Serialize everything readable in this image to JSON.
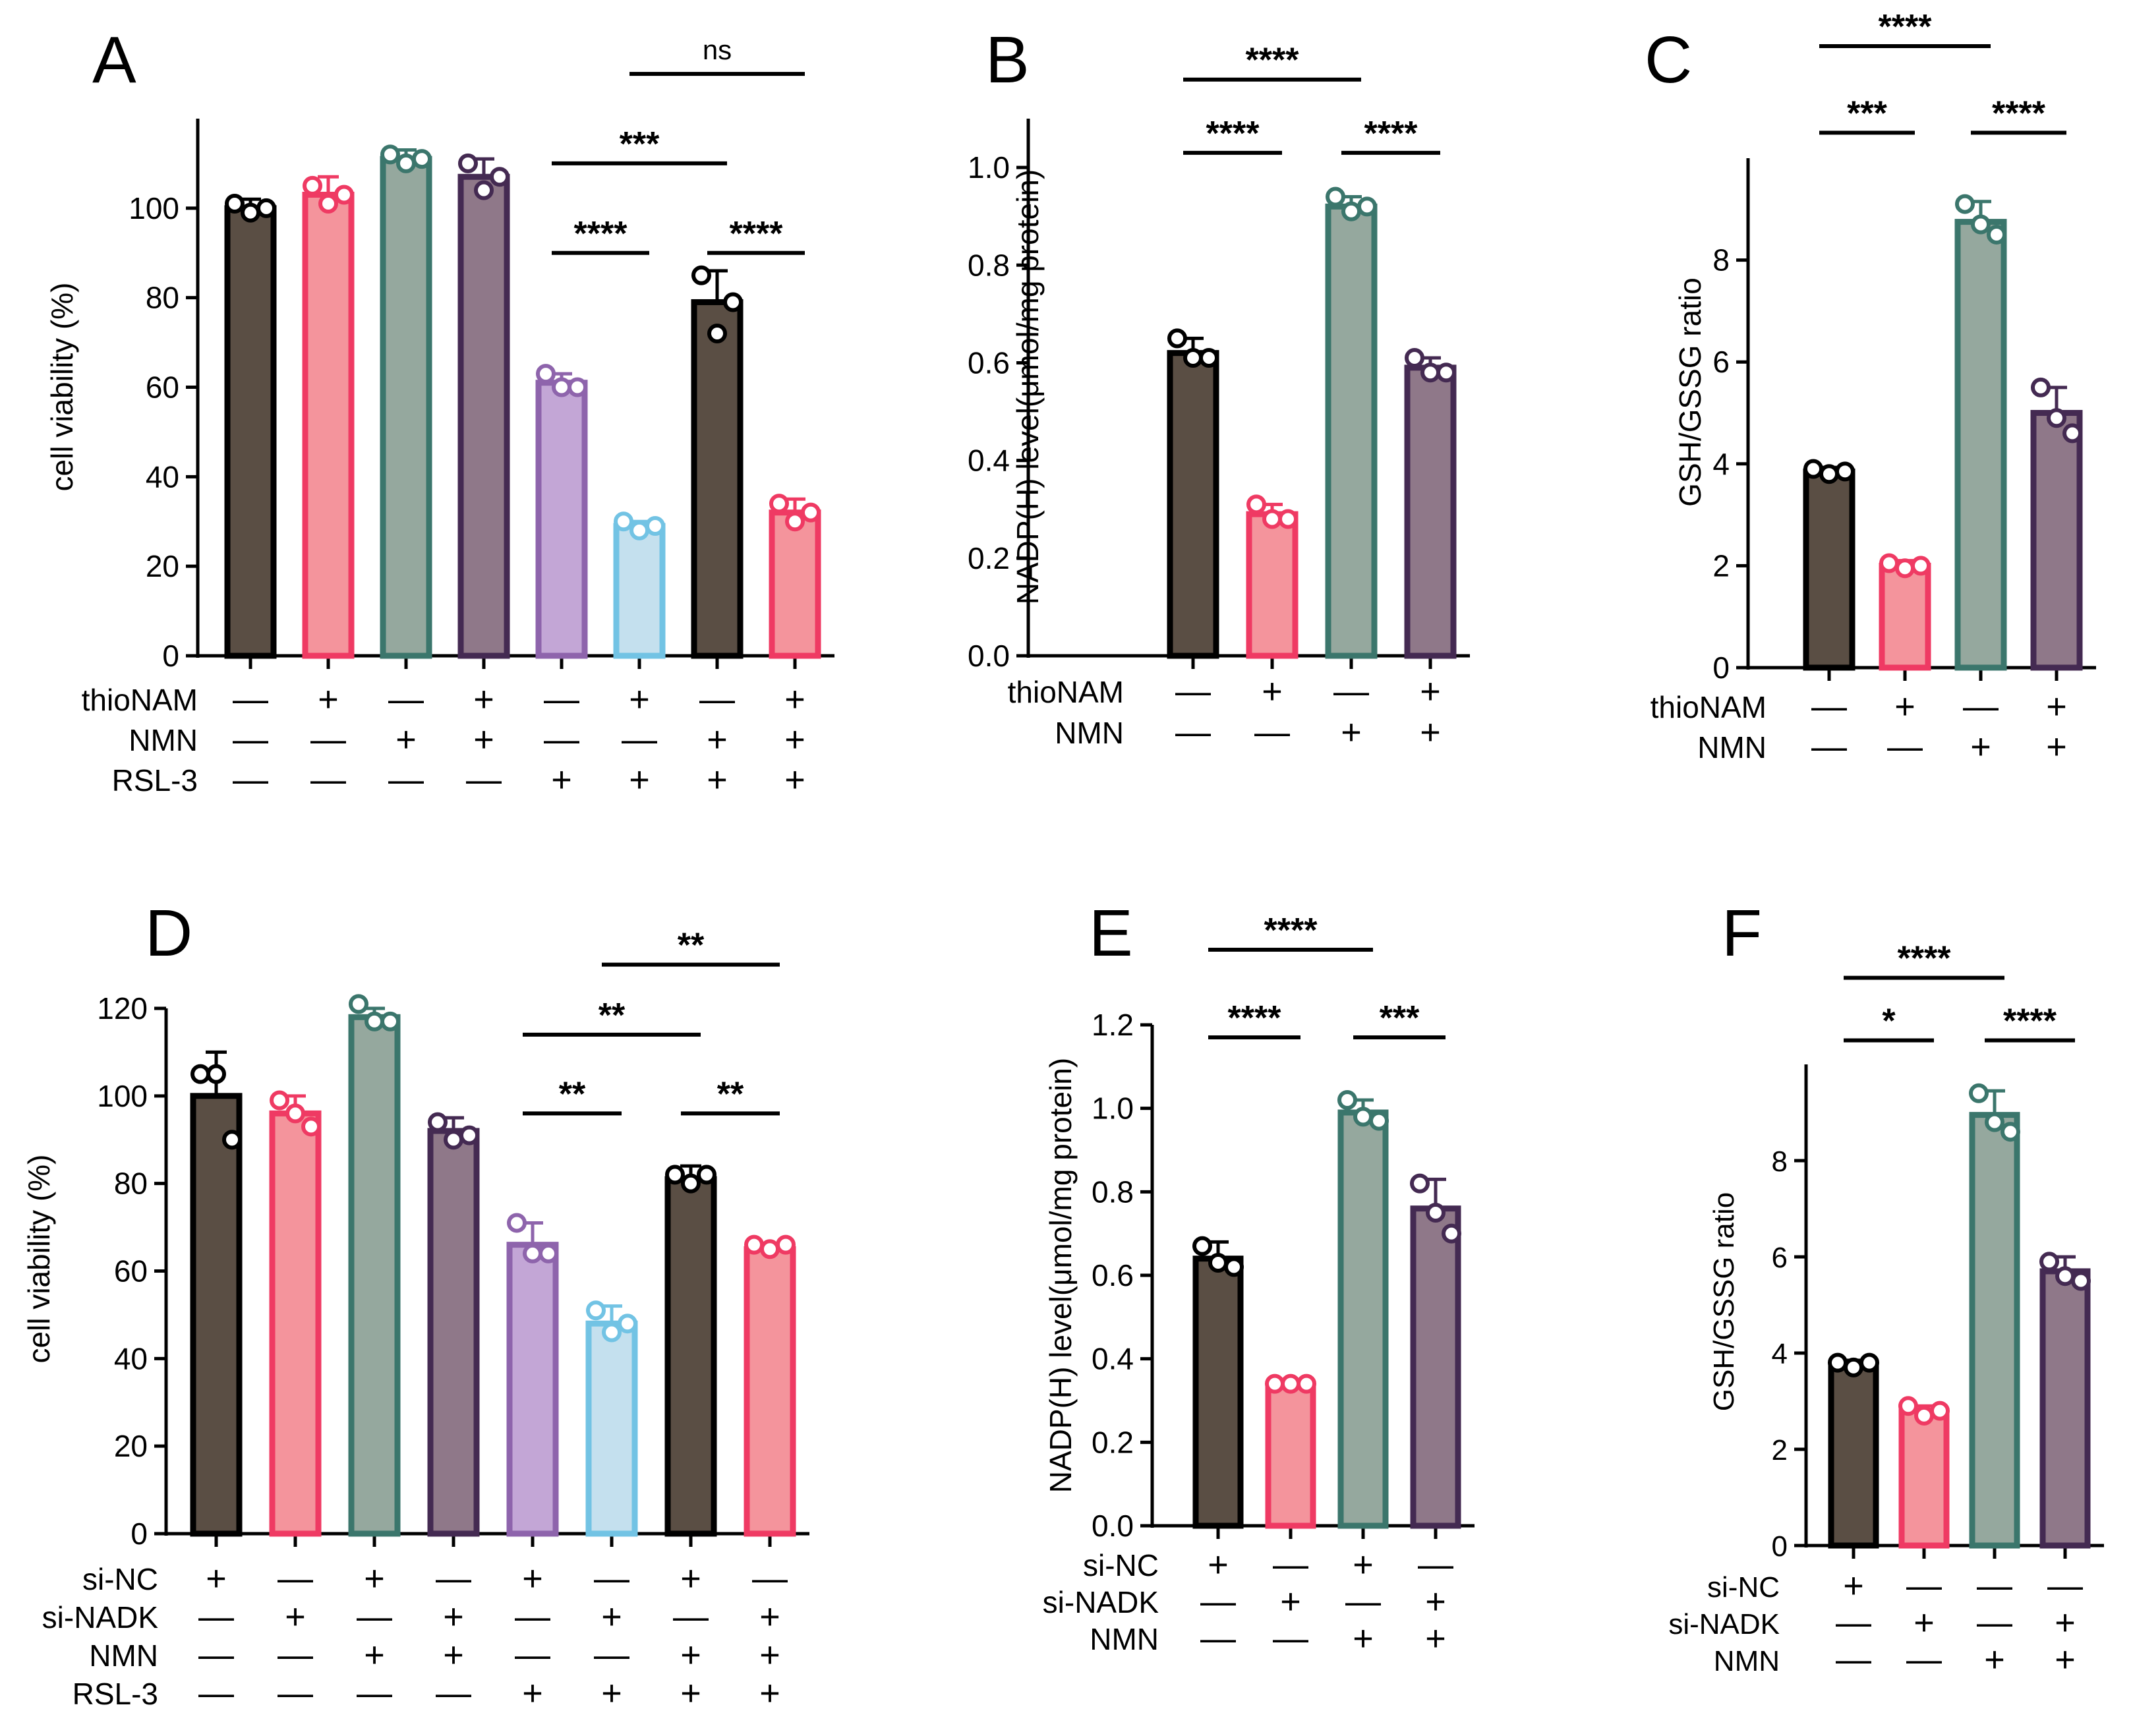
{
  "colors": {
    "dark": "#5a4e44",
    "pink": "#f4949c",
    "teal": "#95a89e",
    "mauve": "#8f7889",
    "lavender": "#c3a6d6",
    "lightblue": "#c4e0ee",
    "border_dark": "#000000",
    "border_pink": "#ef3a63",
    "border_teal": "#3b766c",
    "border_mauve": "#442a52",
    "border_lavender": "#8e64ac",
    "border_lightblue": "#72c3e4"
  },
  "chart_data": [
    {
      "type": "bar",
      "panel_letter": "A",
      "title": "",
      "xlabel": "",
      "ylabel": "cell viability (%)",
      "ylim": [
        0,
        120
      ],
      "yticks": [
        "0",
        "20",
        "40",
        "60",
        "80",
        "100"
      ],
      "grid": false,
      "categories": [
        "1",
        "2",
        "3",
        "4",
        "5",
        "6",
        "7",
        "8"
      ],
      "values": [
        100,
        103,
        111,
        107,
        61,
        29,
        79,
        32
      ],
      "errors": [
        2,
        4,
        2,
        4,
        2,
        1,
        7,
        3
      ],
      "points": [
        [
          101,
          99,
          100
        ],
        [
          105,
          101,
          103
        ],
        [
          112,
          110,
          111
        ],
        [
          110,
          104,
          107
        ],
        [
          63,
          60,
          60
        ],
        [
          30,
          28,
          29
        ],
        [
          85,
          72,
          79
        ],
        [
          34,
          30,
          32
        ]
      ],
      "fills": [
        "dark",
        "pink",
        "teal",
        "mauve",
        "lavender",
        "lightblue",
        "dark",
        "pink"
      ],
      "treatment_labels": [
        "thioNAM",
        "NMN",
        "RSL-3"
      ],
      "treatment_rows": [
        [
          "—",
          "+",
          "—",
          "+",
          "—",
          "+",
          "—",
          "+"
        ],
        [
          "—",
          "—",
          "+",
          "+",
          "—",
          "—",
          "+",
          "+"
        ],
        [
          "—",
          "—",
          "—",
          "—",
          "+",
          "+",
          "+",
          "+"
        ]
      ],
      "significance": [
        {
          "from": 5,
          "to": 6,
          "level": 90,
          "label": "****"
        },
        {
          "from": 5,
          "to": 7,
          "level": 110,
          "label": "***"
        },
        {
          "from": 7,
          "to": 8,
          "level": 90,
          "label": "****"
        },
        {
          "from": 6,
          "to": 8,
          "level": 130,
          "label": "ns"
        }
      ]
    },
    {
      "type": "bar",
      "panel_letter": "B",
      "title": "",
      "xlabel": "",
      "ylabel": "NADP(H) level(μmol/mg protein)",
      "ylim": [
        0,
        1.1
      ],
      "yticks": [
        "0.0",
        "0.2",
        "0.4",
        "0.6",
        "0.8",
        "1.0"
      ],
      "grid": false,
      "categories": [
        "1",
        "2",
        "3",
        "4"
      ],
      "values": [
        0.62,
        0.29,
        0.92,
        0.59
      ],
      "errors": [
        0.03,
        0.02,
        0.02,
        0.02
      ],
      "points": [
        [
          0.65,
          0.61,
          0.61
        ],
        [
          0.31,
          0.28,
          0.28
        ],
        [
          0.94,
          0.91,
          0.92
        ],
        [
          0.61,
          0.58,
          0.58
        ]
      ],
      "fills": [
        "dark",
        "pink",
        "teal",
        "mauve"
      ],
      "treatment_labels": [
        "thioNAM",
        "NMN"
      ],
      "treatment_rows": [
        [
          "—",
          "+",
          "—",
          "+"
        ],
        [
          "—",
          "—",
          "+",
          "+"
        ]
      ],
      "significance": [
        {
          "from": 1,
          "to": 2,
          "level": 1.03,
          "label": "****"
        },
        {
          "from": 3,
          "to": 4,
          "level": 1.03,
          "label": "****"
        },
        {
          "from": 1,
          "to": 3,
          "level": 1.18,
          "label": "****"
        }
      ]
    },
    {
      "type": "bar",
      "panel_letter": "C",
      "title": "",
      "xlabel": "",
      "ylabel": "GSH/GSSG ratio",
      "ylim": [
        0,
        10
      ],
      "yticks": [
        "0",
        "2",
        "4",
        "6",
        "8"
      ],
      "grid": false,
      "categories": [
        "1",
        "2",
        "3",
        "4"
      ],
      "values": [
        3.85,
        2.0,
        8.75,
        5.0
      ],
      "errors": [
        0.08,
        0.1,
        0.4,
        0.5
      ],
      "points": [
        [
          3.9,
          3.8,
          3.85
        ],
        [
          2.05,
          1.95,
          2.0
        ],
        [
          9.1,
          8.7,
          8.5
        ],
        [
          5.5,
          4.9,
          4.6
        ]
      ],
      "fills": [
        "dark",
        "pink",
        "teal",
        "mauve"
      ],
      "treatment_labels": [
        "thioNAM",
        "NMN"
      ],
      "treatment_rows": [
        [
          "—",
          "+",
          "—",
          "+"
        ],
        [
          "—",
          "—",
          "+",
          "+"
        ]
      ],
      "significance": [
        {
          "from": 1,
          "to": 2,
          "level": 10.5,
          "label": "***"
        },
        {
          "from": 3,
          "to": 4,
          "level": 10.5,
          "label": "****"
        },
        {
          "from": 1,
          "to": 3,
          "level": 12.2,
          "label": "****"
        }
      ]
    },
    {
      "type": "bar",
      "panel_letter": "D",
      "title": "",
      "xlabel": "",
      "ylabel": "cell viability (%)",
      "ylim": [
        0,
        120
      ],
      "yticks": [
        "0",
        "20",
        "40",
        "60",
        "80",
        "100",
        "120"
      ],
      "grid": false,
      "categories": [
        "1",
        "2",
        "3",
        "4",
        "5",
        "6",
        "7",
        "8"
      ],
      "values": [
        100,
        96,
        118,
        92,
        66,
        48,
        81,
        65
      ],
      "errors": [
        10,
        4,
        2,
        3,
        5,
        4,
        3,
        1
      ],
      "points": [
        [
          105,
          105,
          90
        ],
        [
          99,
          96,
          93
        ],
        [
          121,
          117,
          117
        ],
        [
          94,
          90,
          91
        ],
        [
          71,
          64,
          64
        ],
        [
          51,
          46,
          48
        ],
        [
          82,
          80,
          82
        ],
        [
          66,
          65,
          66
        ]
      ],
      "fills": [
        "dark",
        "pink",
        "teal",
        "mauve",
        "lavender",
        "lightblue",
        "dark",
        "pink"
      ],
      "treatment_labels": [
        "si-NC",
        "si-NADK",
        "NMN",
        "RSL-3"
      ],
      "treatment_rows": [
        [
          "+",
          "—",
          "+",
          "—",
          "+",
          "—",
          "+",
          "—"
        ],
        [
          "—",
          "+",
          "—",
          "+",
          "—",
          "+",
          "—",
          "+"
        ],
        [
          "—",
          "—",
          "+",
          "+",
          "—",
          "—",
          "+",
          "+"
        ],
        [
          "—",
          "—",
          "—",
          "—",
          "+",
          "+",
          "+",
          "+"
        ]
      ],
      "significance": [
        {
          "from": 5,
          "to": 6,
          "level": 96,
          "label": "**"
        },
        {
          "from": 5,
          "to": 7,
          "level": 114,
          "label": "**"
        },
        {
          "from": 7,
          "to": 8,
          "level": 96,
          "label": "**"
        },
        {
          "from": 6,
          "to": 8,
          "level": 130,
          "label": "**"
        }
      ]
    },
    {
      "type": "bar",
      "panel_letter": "E",
      "title": "",
      "xlabel": "",
      "ylabel": "NADP(H) level(μmol/mg protein)",
      "ylim": [
        0,
        1.2
      ],
      "yticks": [
        "0.0",
        "0.2",
        "0.4",
        "0.6",
        "0.8",
        "1.0",
        "1.2"
      ],
      "grid": false,
      "categories": [
        "1",
        "2",
        "3",
        "4"
      ],
      "values": [
        0.64,
        0.34,
        0.99,
        0.76
      ],
      "errors": [
        0.04,
        0.01,
        0.03,
        0.07
      ],
      "points": [
        [
          0.67,
          0.63,
          0.62
        ],
        [
          0.34,
          0.34,
          0.34
        ],
        [
          1.02,
          0.98,
          0.97
        ],
        [
          0.82,
          0.75,
          0.7
        ]
      ],
      "fills": [
        "dark",
        "pink",
        "teal",
        "mauve"
      ],
      "treatment_labels": [
        "si-NC",
        "si-NADK",
        "NMN"
      ],
      "treatment_rows": [
        [
          "+",
          "—",
          "+",
          "—"
        ],
        [
          "—",
          "+",
          "—",
          "+"
        ],
        [
          "—",
          "—",
          "+",
          "+"
        ]
      ],
      "significance": [
        {
          "from": 1,
          "to": 2,
          "level": 1.17,
          "label": "****"
        },
        {
          "from": 3,
          "to": 4,
          "level": 1.17,
          "label": "***"
        },
        {
          "from": 1,
          "to": 3,
          "level": 1.38,
          "label": "****"
        }
      ]
    },
    {
      "type": "bar",
      "panel_letter": "F",
      "title": "",
      "xlabel": "",
      "ylabel": "GSH/GSSG ratio",
      "ylim": [
        0,
        10
      ],
      "yticks": [
        "0",
        "2",
        "4",
        "6",
        "8"
      ],
      "grid": false,
      "categories": [
        "1",
        "2",
        "3",
        "4"
      ],
      "values": [
        3.75,
        2.8,
        8.95,
        5.7
      ],
      "errors": [
        0.1,
        0.1,
        0.5,
        0.3
      ],
      "points": [
        [
          3.8,
          3.7,
          3.8
        ],
        [
          2.9,
          2.7,
          2.8
        ],
        [
          9.4,
          8.8,
          8.6
        ],
        [
          5.9,
          5.6,
          5.5
        ]
      ],
      "fills": [
        "dark",
        "pink",
        "teal",
        "mauve"
      ],
      "treatment_labels": [
        "si-NC",
        "si-NADK",
        "NMN"
      ],
      "treatment_rows": [
        [
          "+",
          "—",
          "—",
          "—"
        ],
        [
          "—",
          "+",
          "—",
          "+"
        ],
        [
          "—",
          "—",
          "+",
          "+"
        ]
      ],
      "significance": [
        {
          "from": 1,
          "to": 2,
          "level": 10.5,
          "label": "*"
        },
        {
          "from": 3,
          "to": 4,
          "level": 10.5,
          "label": "****"
        },
        {
          "from": 1,
          "to": 3,
          "level": 11.8,
          "label": "****"
        }
      ]
    }
  ]
}
